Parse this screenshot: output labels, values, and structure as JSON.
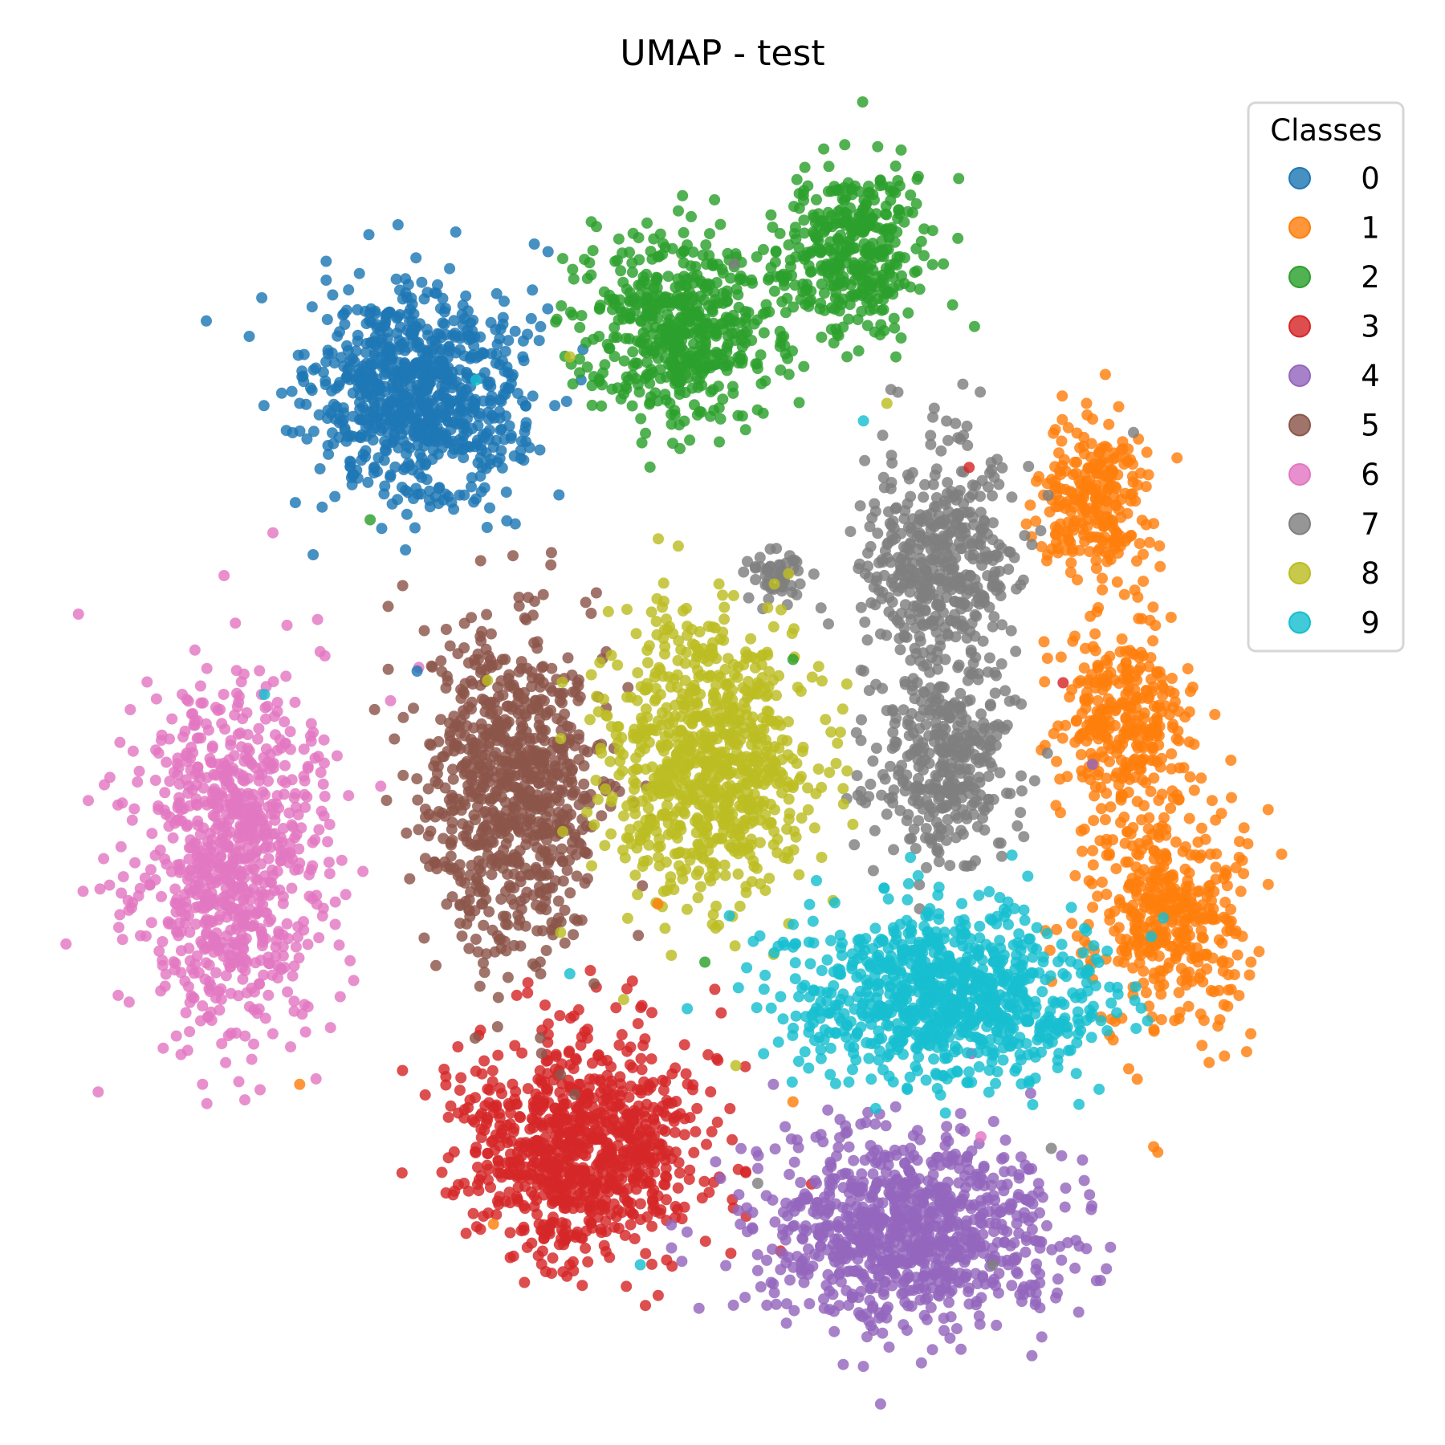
{
  "chart_data": {
    "type": "scatter",
    "title": "UMAP - test",
    "xlabel": "",
    "ylabel": "",
    "axes_visible": false,
    "grid": false,
    "xlim": [
      -10.8,
      10.8
    ],
    "ylim": [
      -11.0,
      11.0
    ],
    "legend": {
      "title": "Classes",
      "placement": "top-right",
      "entries": [
        "0",
        "1",
        "2",
        "3",
        "4",
        "5",
        "6",
        "7",
        "8",
        "9"
      ]
    },
    "series": [
      {
        "name": "0",
        "color": "#1f77b4",
        "clusters": [
          {
            "center": [
              -5.2,
              6.1
            ],
            "spread": [
              1.45,
              1.45
            ],
            "count": 820
          }
        ],
        "approximate_points": [
          [
            -7.2,
            6.0
          ],
          [
            -6.4,
            7.6
          ],
          [
            -5.4,
            4.9
          ],
          [
            -3.6,
            5.4
          ],
          [
            -3.4,
            6.8
          ],
          [
            -4.9,
            7.9
          ],
          [
            -6.6,
            4.4
          ],
          [
            -5.0,
            5.8
          ]
        ]
      },
      {
        "name": "1",
        "color": "#ff7f0e",
        "clusters": [
          {
            "center": [
              6.4,
              4.4
            ],
            "spread": [
              0.7,
              1.2
            ],
            "count": 260
          },
          {
            "center": [
              6.8,
              0.6
            ],
            "spread": [
              0.9,
              1.3
            ],
            "count": 320
          },
          {
            "center": [
              7.6,
              -2.8
            ],
            "spread": [
              1.1,
              1.6
            ],
            "count": 420
          }
        ],
        "approximate_points": [
          [
            6.2,
            6.0
          ],
          [
            6.9,
            5.0
          ],
          [
            6.0,
            2.0
          ],
          [
            7.4,
            0.6
          ],
          [
            8.8,
            -1.8
          ],
          [
            8.2,
            -4.6
          ],
          [
            6.8,
            -3.4
          ],
          [
            9.0,
            -3.6
          ]
        ]
      },
      {
        "name": "2",
        "color": "#2ca02c",
        "clusters": [
          {
            "center": [
              -0.7,
              7.3
            ],
            "spread": [
              1.35,
              1.25
            ],
            "count": 540
          },
          {
            "center": [
              2.2,
              8.6
            ],
            "spread": [
              1.0,
              1.1
            ],
            "count": 380
          }
        ],
        "approximate_points": [
          [
            -2.2,
            7.1
          ],
          [
            -0.5,
            8.6
          ],
          [
            0.6,
            6.6
          ],
          [
            1.6,
            9.5
          ],
          [
            3.2,
            8.0
          ],
          [
            2.8,
            9.0
          ],
          [
            -1.6,
            6.4
          ],
          [
            -0.2,
            6.2
          ]
        ]
      },
      {
        "name": "3",
        "color": "#d62728",
        "clusters": [
          {
            "center": [
              -2.4,
              -6.8
            ],
            "spread": [
              1.6,
              1.55
            ],
            "count": 880
          }
        ],
        "approximate_points": [
          [
            -4.4,
            -7.4
          ],
          [
            -3.0,
            -5.3
          ],
          [
            -1.0,
            -5.8
          ],
          [
            -0.8,
            -7.8
          ],
          [
            -2.6,
            -8.8
          ],
          [
            -3.8,
            -6.2
          ],
          [
            -1.8,
            -7.0
          ]
        ]
      },
      {
        "name": "4",
        "color": "#9467bd",
        "clusters": [
          {
            "center": [
              3.2,
              -8.2
            ],
            "spread": [
              2.1,
              1.35
            ],
            "count": 900
          }
        ],
        "approximate_points": [
          [
            0.6,
            -8.9
          ],
          [
            1.6,
            -7.4
          ],
          [
            3.2,
            -6.8
          ],
          [
            4.8,
            -7.2
          ],
          [
            5.4,
            -8.4
          ],
          [
            3.8,
            -9.2
          ],
          [
            1.9,
            -9.6
          ]
        ]
      },
      {
        "name": "5",
        "color": "#8c564b",
        "clusters": [
          {
            "center": [
              -3.6,
              -0.6
            ],
            "spread": [
              1.25,
              2.3
            ],
            "count": 820
          }
        ],
        "approximate_points": [
          [
            -4.4,
            1.8
          ],
          [
            -3.2,
            2.6
          ],
          [
            -4.6,
            -1.2
          ],
          [
            -3.0,
            -3.4
          ],
          [
            -2.6,
            -0.2
          ],
          [
            -4.1,
            -2.6
          ]
        ]
      },
      {
        "name": "6",
        "color": "#e377c2",
        "clusters": [
          {
            "center": [
              -8.4,
              -1.8
            ],
            "spread": [
              1.35,
              2.5
            ],
            "count": 820
          }
        ],
        "approximate_points": [
          [
            -9.2,
            1.0
          ],
          [
            -8.6,
            -0.8
          ],
          [
            -7.2,
            -1.9
          ],
          [
            -8.1,
            -3.6
          ],
          [
            -7.1,
            -4.8
          ],
          [
            -9.3,
            -2.6
          ]
        ]
      },
      {
        "name": "7",
        "color": "#7f7f7f",
        "clusters": [
          {
            "center": [
              3.6,
              3.2
            ],
            "spread": [
              1.05,
              1.65
            ],
            "count": 480
          },
          {
            "center": [
              3.8,
              -0.3
            ],
            "spread": [
              0.9,
              1.25
            ],
            "count": 340
          },
          {
            "center": [
              1.0,
              3.0
            ],
            "spread": [
              0.45,
              0.45
            ],
            "count": 50
          }
        ],
        "approximate_points": [
          [
            3.2,
            4.4
          ],
          [
            4.3,
            2.0
          ],
          [
            3.6,
            0.8
          ],
          [
            4.1,
            -1.4
          ],
          [
            1.0,
            3.1
          ]
        ]
      },
      {
        "name": "8",
        "color": "#bcbd22",
        "clusters": [
          {
            "center": [
              -0.3,
              -0.1
            ],
            "spread": [
              1.4,
              1.9
            ],
            "count": 840
          }
        ],
        "approximate_points": [
          [
            -1.0,
            2.6
          ],
          [
            0.6,
            1.2
          ],
          [
            -0.8,
            -1.4
          ],
          [
            0.4,
            -2.3
          ],
          [
            -1.5,
            0.4
          ],
          [
            1.2,
            -0.6
          ]
        ]
      },
      {
        "name": "9",
        "color": "#17becf",
        "clusters": [
          {
            "center": [
              3.8,
              -4.2
            ],
            "spread": [
              2.1,
              1.15
            ],
            "count": 900
          }
        ],
        "approximate_points": [
          [
            1.4,
            -4.0
          ],
          [
            3.2,
            -3.2
          ],
          [
            5.6,
            -4.6
          ],
          [
            4.6,
            -5.2
          ],
          [
            2.6,
            -5.0
          ],
          [
            5.0,
            -3.6
          ]
        ]
      }
    ]
  }
}
